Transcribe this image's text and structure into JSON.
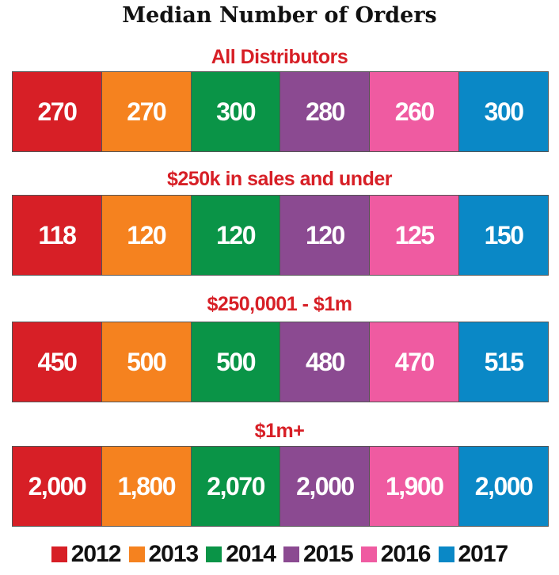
{
  "chart_data": {
    "type": "table",
    "title": "Median Number of Orders",
    "legend_position": "bottom",
    "years": [
      "2012",
      "2013",
      "2014",
      "2015",
      "2016",
      "2017"
    ],
    "colors": [
      "#d71f26",
      "#f5821f",
      "#0a9447",
      "#8b4a91",
      "#ef5ba1",
      "#0a88c6"
    ],
    "groups": [
      {
        "name": "All Distributors",
        "values": [
          "270",
          "270",
          "300",
          "280",
          "260",
          "300"
        ]
      },
      {
        "name": "$250k in sales and under",
        "values": [
          "118",
          "120",
          "120",
          "120",
          "125",
          "150"
        ]
      },
      {
        "name": "$250,0001 - $1m",
        "values": [
          "450",
          "500",
          "500",
          "480",
          "470",
          "515"
        ]
      },
      {
        "name": "$1m+",
        "values": [
          "2,000",
          "1,800",
          "2,070",
          "2,000",
          "1,900",
          "2,000"
        ]
      }
    ]
  }
}
